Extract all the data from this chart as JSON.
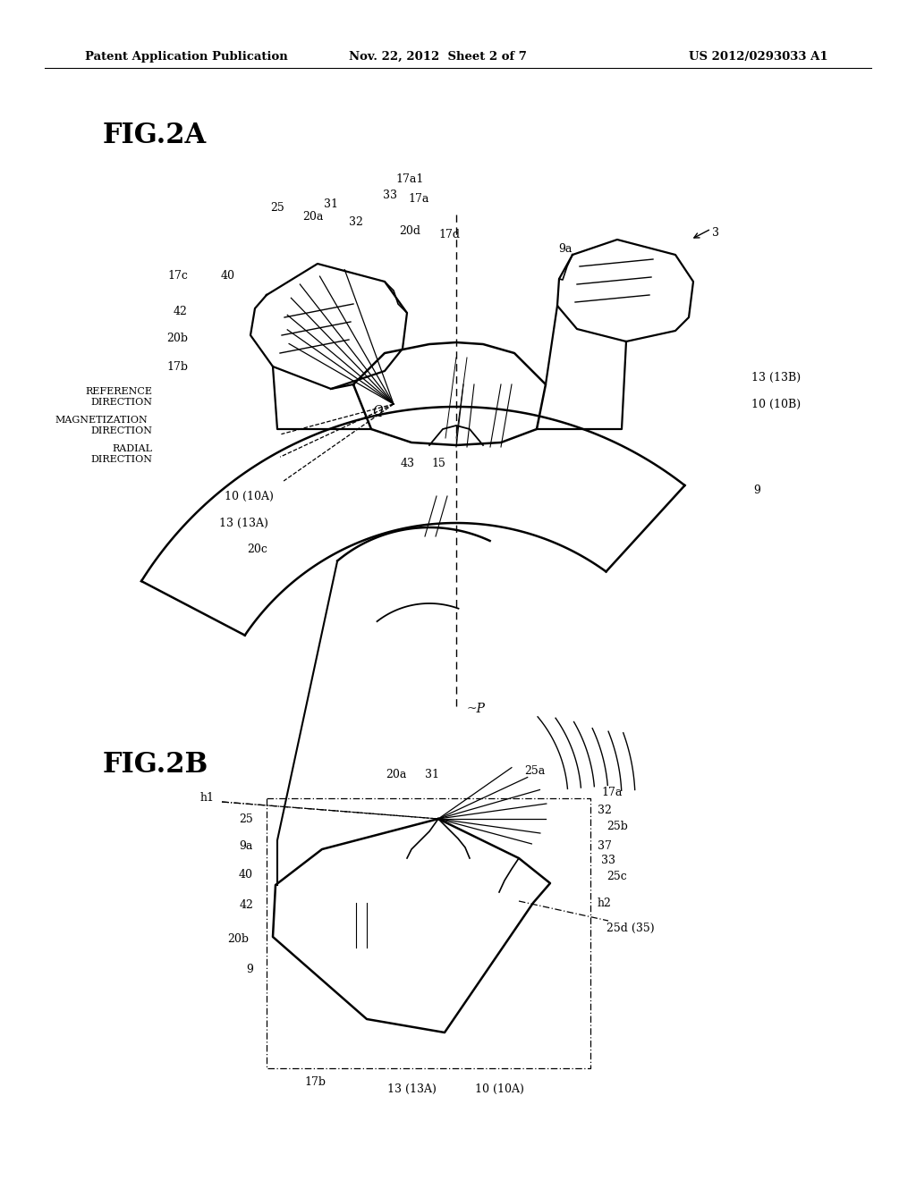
{
  "bg_color": "#ffffff",
  "header_left": "Patent Application Publication",
  "header_mid": "Nov. 22, 2012  Sheet 2 of 7",
  "header_right": "US 2012/0293033 A1",
  "fig2a_label": "FIG.2A",
  "fig2b_label": "FIG.2B"
}
